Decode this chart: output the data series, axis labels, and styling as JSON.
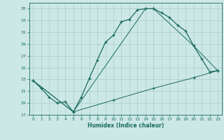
{
  "xlabel": "Humidex (Indice chaleur)",
  "background_color": "#cce8e6",
  "grid_color": "#aaccca",
  "line_color": "#1a6b5e",
  "xlim": [
    -0.5,
    23.5
  ],
  "ylim": [
    17,
    36
  ],
  "xticks": [
    0,
    1,
    2,
    3,
    4,
    5,
    6,
    7,
    8,
    9,
    10,
    11,
    12,
    13,
    14,
    15,
    16,
    17,
    18,
    19,
    20,
    21,
    22,
    23
  ],
  "yticks": [
    17,
    19,
    21,
    23,
    25,
    27,
    29,
    31,
    33,
    35
  ],
  "line1_x": [
    0,
    1,
    2,
    3,
    4,
    5,
    6,
    7,
    8,
    9,
    10,
    11,
    12,
    13,
    14,
    15,
    16,
    17,
    18,
    19,
    20,
    21,
    22,
    23
  ],
  "line1_y": [
    22.8,
    21.5,
    20.0,
    19.0,
    19.2,
    17.5,
    20.0,
    23.2,
    26.3,
    29.3,
    30.5,
    32.8,
    33.2,
    34.8,
    35.0,
    35.0,
    34.3,
    33.5,
    32.2,
    31.2,
    28.7,
    26.5,
    24.3,
    24.5
  ],
  "line2_x": [
    0,
    5,
    14,
    15,
    20,
    23
  ],
  "line2_y": [
    22.8,
    17.5,
    35.0,
    35.0,
    28.7,
    24.5
  ],
  "line3_x": [
    0,
    5,
    10,
    15,
    20,
    23
  ],
  "line3_y": [
    22.8,
    17.5,
    19.5,
    21.5,
    23.3,
    24.5
  ]
}
